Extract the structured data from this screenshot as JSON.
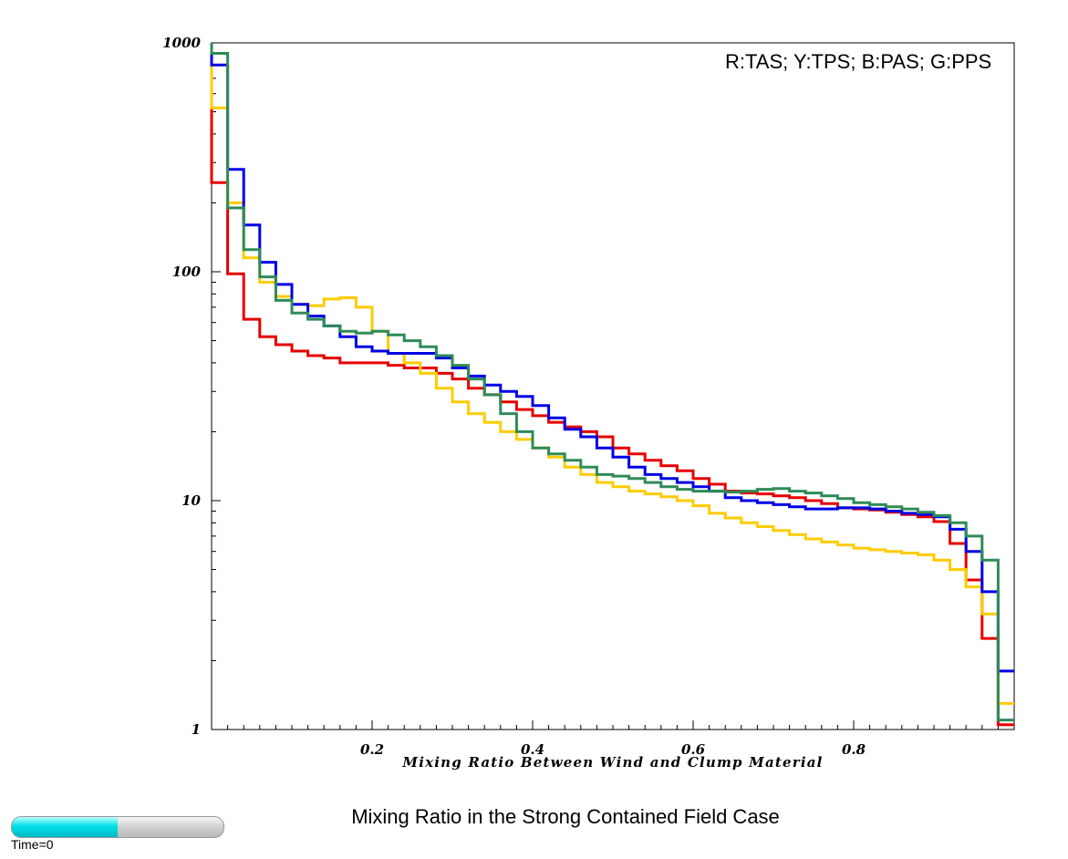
{
  "chart_data": {
    "type": "line",
    "style": "step",
    "xlabel": "Mixing Ratio Between Wind and Clump Material",
    "ylabel": "",
    "title": "Mixing Ratio in the Strong Contained Field Case",
    "legend_text": "R:TAS; Y:TPS; B:PAS; G:PPS",
    "xlim": [
      0.0,
      1.0
    ],
    "ylim": [
      1,
      1000
    ],
    "yscale": "log",
    "grid": false,
    "legend_placement": "top-right",
    "x_ticks": [
      "0.2",
      "0.4",
      "0.6",
      "0.8"
    ],
    "y_ticks": [
      "1",
      "10",
      "100",
      "1000"
    ],
    "series": [
      {
        "color": "#e60000",
        "x": [
          0.01,
          0.03,
          0.05,
          0.07,
          0.09,
          0.11,
          0.13,
          0.15,
          0.17,
          0.19,
          0.21,
          0.23,
          0.25,
          0.27,
          0.29,
          0.31,
          0.33,
          0.35,
          0.37,
          0.39,
          0.41,
          0.43,
          0.45,
          0.47,
          0.49,
          0.51,
          0.53,
          0.55,
          0.57,
          0.59,
          0.61,
          0.63,
          0.65,
          0.67,
          0.69,
          0.71,
          0.73,
          0.75,
          0.77,
          0.79,
          0.81,
          0.83,
          0.85,
          0.87,
          0.89,
          0.91,
          0.93,
          0.95,
          0.97,
          0.99
        ],
        "values": [
          245,
          98,
          62,
          52,
          48,
          45,
          43,
          42,
          40,
          40,
          40,
          39,
          38,
          38,
          36,
          34,
          31,
          29,
          27,
          25,
          23.5,
          22,
          21,
          20,
          19,
          17,
          16,
          15,
          14.2,
          13.5,
          12.5,
          11.8,
          11,
          10.8,
          10.7,
          10.5,
          10.3,
          10,
          9.7,
          9.3,
          9.2,
          9.1,
          8.9,
          8.7,
          8.5,
          8.1,
          6.5,
          4.5,
          2.5,
          1.05
        ]
      },
      {
        "color": "#ffcc00",
        "x": [
          0.01,
          0.03,
          0.05,
          0.07,
          0.09,
          0.11,
          0.13,
          0.15,
          0.17,
          0.19,
          0.21,
          0.23,
          0.25,
          0.27,
          0.29,
          0.31,
          0.33,
          0.35,
          0.37,
          0.39,
          0.41,
          0.43,
          0.45,
          0.47,
          0.49,
          0.51,
          0.53,
          0.55,
          0.57,
          0.59,
          0.61,
          0.63,
          0.65,
          0.67,
          0.69,
          0.71,
          0.73,
          0.75,
          0.77,
          0.79,
          0.81,
          0.83,
          0.85,
          0.87,
          0.89,
          0.91,
          0.93,
          0.95,
          0.97,
          0.99
        ],
        "values": [
          520,
          200,
          115,
          90,
          78,
          72,
          71,
          76,
          77,
          70,
          55,
          44,
          40,
          36,
          31,
          27,
          24,
          22,
          20,
          18.5,
          17,
          15.5,
          14,
          13,
          12,
          11.5,
          11,
          10.7,
          10.4,
          10,
          9.5,
          8.8,
          8.4,
          8,
          7.7,
          7.4,
          7.1,
          6.8,
          6.6,
          6.4,
          6.2,
          6.1,
          6,
          5.9,
          5.8,
          5.5,
          5,
          4.2,
          3.2,
          1.3
        ]
      },
      {
        "color": "#0000e6",
        "x": [
          0.01,
          0.03,
          0.05,
          0.07,
          0.09,
          0.11,
          0.13,
          0.15,
          0.17,
          0.19,
          0.21,
          0.23,
          0.25,
          0.27,
          0.29,
          0.31,
          0.33,
          0.35,
          0.37,
          0.39,
          0.41,
          0.43,
          0.45,
          0.47,
          0.49,
          0.51,
          0.53,
          0.55,
          0.57,
          0.59,
          0.61,
          0.63,
          0.65,
          0.67,
          0.69,
          0.71,
          0.73,
          0.75,
          0.77,
          0.79,
          0.81,
          0.83,
          0.85,
          0.87,
          0.89,
          0.91,
          0.93,
          0.95,
          0.97,
          0.99
        ],
        "values": [
          800,
          280,
          160,
          110,
          88,
          72,
          64,
          58,
          52,
          47,
          45,
          44,
          44,
          44,
          42,
          38,
          35,
          32,
          30,
          28.5,
          26,
          23,
          20.5,
          19,
          17,
          15.5,
          14,
          13,
          12.5,
          12,
          11.5,
          11,
          10.3,
          10,
          9.8,
          9.6,
          9.4,
          9.2,
          9.2,
          9.3,
          9.3,
          9.2,
          9,
          8.8,
          8.7,
          8.5,
          7.5,
          6,
          4,
          1.8
        ]
      },
      {
        "color": "#2e8b57",
        "x": [
          0.01,
          0.03,
          0.05,
          0.07,
          0.09,
          0.11,
          0.13,
          0.15,
          0.17,
          0.19,
          0.21,
          0.23,
          0.25,
          0.27,
          0.29,
          0.31,
          0.33,
          0.35,
          0.37,
          0.39,
          0.41,
          0.43,
          0.45,
          0.47,
          0.49,
          0.51,
          0.53,
          0.55,
          0.57,
          0.59,
          0.61,
          0.63,
          0.65,
          0.67,
          0.69,
          0.71,
          0.73,
          0.75,
          0.77,
          0.79,
          0.81,
          0.83,
          0.85,
          0.87,
          0.89,
          0.91,
          0.93,
          0.95,
          0.97,
          0.99
        ],
        "values": [
          900,
          190,
          125,
          95,
          75,
          66,
          62,
          58,
          55,
          54,
          55,
          53,
          50,
          47,
          43,
          39,
          34,
          29,
          24,
          20,
          17,
          16,
          15,
          14,
          13,
          12.8,
          12.5,
          12,
          11.5,
          11.2,
          11,
          11,
          10.9,
          11,
          11.2,
          11.3,
          11,
          10.8,
          10.5,
          10.2,
          9.8,
          9.6,
          9.4,
          9.2,
          8.9,
          8.6,
          8,
          7,
          5.5,
          1.1
        ]
      }
    ]
  },
  "colorbar": {
    "time_label": "Time=0",
    "fill_fraction": 0.5
  }
}
